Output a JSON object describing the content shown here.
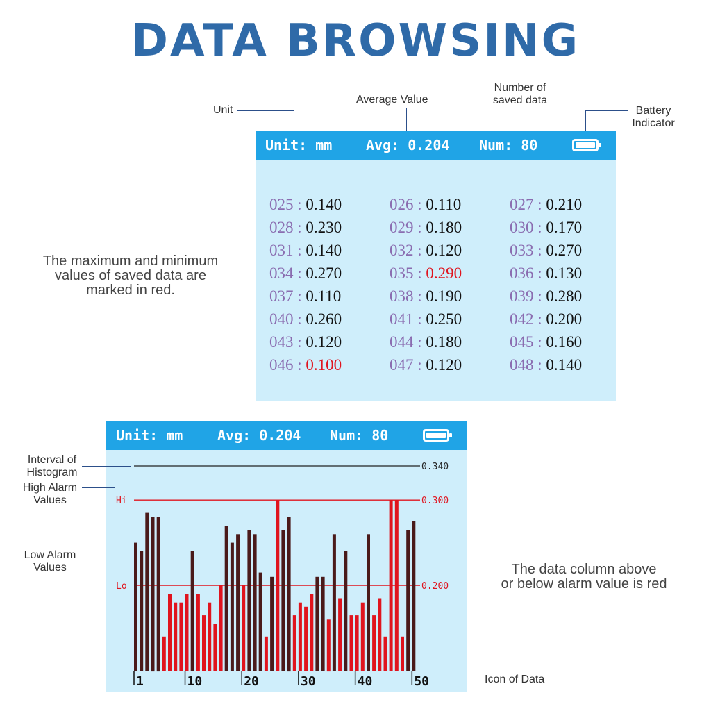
{
  "title": "DATA BROWSING",
  "callouts": {
    "unit": "Unit",
    "average": "Average Value",
    "number": [
      "Number of",
      "saved data"
    ],
    "battery": [
      "Battery",
      "Indicator"
    ],
    "interval": [
      "Interval of",
      "Histogram"
    ],
    "high": [
      "High Alarm",
      "Values"
    ],
    "low": [
      "Low Alarm",
      "Values"
    ],
    "icon_of_data": "Icon of Data"
  },
  "notes": {
    "minmax": [
      "The maximum and minimum",
      "values of saved data are",
      "marked in red."
    ],
    "column": [
      "The data column above",
      "or below alarm value is red"
    ]
  },
  "status": {
    "unit": "Unit: mm",
    "avg": "Avg: 0.204",
    "num": "Num: 80",
    "battery_icon": "battery-full-icon"
  },
  "table": [
    [
      {
        "idx": "025",
        "val": "0.140",
        "red": false
      },
      {
        "idx": "026",
        "val": "0.110",
        "red": false
      },
      {
        "idx": "027",
        "val": "0.210",
        "red": false
      }
    ],
    [
      {
        "idx": "028",
        "val": "0.230",
        "red": false
      },
      {
        "idx": "029",
        "val": "0.180",
        "red": false
      },
      {
        "idx": "030",
        "val": "0.170",
        "red": false
      }
    ],
    [
      {
        "idx": "031",
        "val": "0.140",
        "red": false
      },
      {
        "idx": "032",
        "val": "0.120",
        "red": false
      },
      {
        "idx": "033",
        "val": "0.270",
        "red": false
      }
    ],
    [
      {
        "idx": "034",
        "val": "0.270",
        "red": false
      },
      {
        "idx": "035",
        "val": "0.290",
        "red": true
      },
      {
        "idx": "036",
        "val": "0.130",
        "red": false
      }
    ],
    [
      {
        "idx": "037",
        "val": "0.110",
        "red": false
      },
      {
        "idx": "038",
        "val": "0.190",
        "red": false
      },
      {
        "idx": "039",
        "val": "0.280",
        "red": false
      }
    ],
    [
      {
        "idx": "040",
        "val": "0.260",
        "red": false
      },
      {
        "idx": "041",
        "val": "0.250",
        "red": false
      },
      {
        "idx": "042",
        "val": "0.200",
        "red": false
      }
    ],
    [
      {
        "idx": "043",
        "val": "0.120",
        "red": false
      },
      {
        "idx": "044",
        "val": "0.180",
        "red": false
      },
      {
        "idx": "045",
        "val": "0.160",
        "red": false
      }
    ],
    [
      {
        "idx": "046",
        "val": "0.100",
        "red": true
      },
      {
        "idx": "047",
        "val": "0.120",
        "red": false
      },
      {
        "idx": "048",
        "val": "0.140",
        "red": false
      }
    ]
  ],
  "colors": {
    "title": "#2f6aa8",
    "statusbar": "#20a4e6",
    "screen": "#cfeefb",
    "alarm": "#e0141e",
    "normal_bar": "#4a1a1a",
    "index": "#8a6cb0"
  },
  "chart_data": {
    "type": "bar",
    "ylim": [
      0.1,
      0.34
    ],
    "lines": [
      {
        "label": "",
        "value_label": "0.340",
        "value": 0.34
      },
      {
        "label": "Hi",
        "value_label": "0.300",
        "value": 0.3
      },
      {
        "label": "Lo",
        "value_label": "0.200",
        "value": 0.2
      }
    ],
    "x_ticks": [
      "1",
      "10",
      "20",
      "30",
      "40",
      "50"
    ],
    "x_tick_positions": [
      1,
      10,
      20,
      30,
      40,
      50
    ],
    "values": [
      0.25,
      0.24,
      0.285,
      0.28,
      0.28,
      0.14,
      0.19,
      0.18,
      0.18,
      0.19,
      0.24,
      0.19,
      0.165,
      0.18,
      0.155,
      0.2,
      0.27,
      0.25,
      0.26,
      0.2,
      0.265,
      0.26,
      0.215,
      0.14,
      0.21,
      0.3,
      0.265,
      0.28,
      0.165,
      0.18,
      0.175,
      0.19,
      0.21,
      0.21,
      0.16,
      0.26,
      0.185,
      0.24,
      0.165,
      0.165,
      0.18,
      0.26,
      0.165,
      0.185,
      0.14,
      0.3,
      0.3,
      0.14,
      0.265,
      0.275
    ]
  }
}
